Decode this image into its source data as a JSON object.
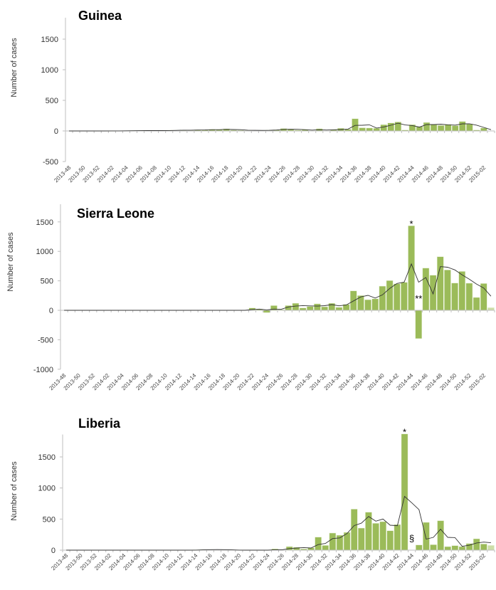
{
  "chart_data": [
    {
      "type": "bar",
      "title": "Guinea",
      "ylabel": "Number of cases",
      "xlabel": "",
      "ylim": [
        -500,
        1850
      ],
      "yticks": [
        "1500",
        "1000",
        "500",
        "0",
        "-500"
      ],
      "ytick_values": [
        1500,
        1000,
        500,
        0,
        -500
      ],
      "tick_labels": [
        "2013-48",
        "2013-50",
        "2013-52",
        "2014-02",
        "2014-04",
        "2014-06",
        "2014-08",
        "2014-10",
        "2014-12",
        "2014-14",
        "2014-16",
        "2014-18",
        "2014-20",
        "2014-22",
        "2014-24",
        "2014-26",
        "2014-28",
        "2014-30",
        "2014-32",
        "2014-34",
        "2014-36",
        "2014-38",
        "2014-40",
        "2014-42",
        "2014-44",
        "2014-46",
        "2014-48",
        "2014-50",
        "2014-52",
        "2015-02"
      ],
      "weeks_per_tick": 2,
      "values": [
        0,
        0,
        0,
        0,
        0,
        0,
        2,
        3,
        3,
        5,
        5,
        8,
        5,
        5,
        12,
        10,
        15,
        12,
        20,
        18,
        25,
        20,
        35,
        15,
        12,
        10,
        8,
        10,
        15,
        20,
        40,
        25,
        15,
        22,
        5,
        36,
        5,
        20,
        44,
        28,
        200,
        52,
        48,
        44,
        103,
        131,
        147,
        16,
        103,
        71,
        139,
        103,
        91,
        107,
        87,
        155,
        111,
        16,
        48,
        0
      ],
      "trend": "moving average (3 weeks)",
      "annotations": []
    },
    {
      "type": "bar",
      "title": "Sierra Leone",
      "ylabel": "Number of cases",
      "xlabel": "",
      "ylim": [
        -1000,
        1800
      ],
      "yticks": [
        "1500",
        "1000",
        "500",
        "0",
        "-500",
        "-1000"
      ],
      "ytick_values": [
        1500,
        1000,
        500,
        0,
        -500,
        -1000
      ],
      "tick_labels": [
        "2013-48",
        "2013-50",
        "2013-52",
        "2014-02",
        "2014-04",
        "2014-06",
        "2014-08",
        "2014-10",
        "2014-12",
        "2014-14",
        "2014-16",
        "2014-18",
        "2014-20",
        "2014-22",
        "2014-24",
        "2014-26",
        "2014-28",
        "2014-30",
        "2014-32",
        "2014-34",
        "2014-36",
        "2014-38",
        "2014-40",
        "2014-42",
        "2014-44",
        "2014-46",
        "2014-48",
        "2014-50",
        "2014-52",
        "2015-02"
      ],
      "weeks_per_tick": 2,
      "values": [
        0,
        0,
        0,
        0,
        0,
        0,
        0,
        0,
        0,
        0,
        0,
        0,
        0,
        0,
        0,
        0,
        0,
        0,
        0,
        0,
        0,
        0,
        0,
        0,
        0,
        0,
        40,
        20,
        -40,
        80,
        12,
        80,
        120,
        40,
        65,
        110,
        60,
        120,
        50,
        100,
        330,
        250,
        180,
        195,
        410,
        505,
        450,
        475,
        1435,
        -480,
        717,
        596,
        910,
        685,
        463,
        660,
        460,
        218,
        455,
        45
      ],
      "trend": "moving average (3 weeks)",
      "annotations": [
        {
          "text": "*",
          "week_index": 48,
          "position": "above"
        },
        {
          "text": "**",
          "week_index": 49,
          "position": "above-zero"
        }
      ]
    },
    {
      "type": "bar",
      "title": "Liberia",
      "ylabel": "Number of cases",
      "xlabel": "",
      "ylim": [
        0,
        1860
      ],
      "yticks": [
        "1500",
        "1000",
        "500",
        "0"
      ],
      "ytick_values": [
        1500,
        1000,
        500,
        0
      ],
      "tick_labels": [
        "2013-48",
        "2013-50",
        "2013-52",
        "2014-02",
        "2014-04",
        "2014-06",
        "2014-08",
        "2014-10",
        "2014-12",
        "2014-14",
        "2014-16",
        "2014-18",
        "2014-20",
        "2014-22",
        "2014-24",
        "2014-26",
        "2014-28",
        "2014-30",
        "2014-32",
        "2014-34",
        "2014-36",
        "2014-38",
        "2014-40",
        "2014-42",
        "2014-44",
        "2014-46",
        "2014-48",
        "2014-50",
        "2014-52",
        "2015-02"
      ],
      "weeks_per_tick": 2,
      "values": [
        0,
        0,
        0,
        0,
        0,
        0,
        0,
        0,
        0,
        0,
        0,
        0,
        0,
        0,
        0,
        0,
        0,
        0,
        5,
        8,
        10,
        8,
        5,
        0,
        0,
        0,
        0,
        0,
        0,
        20,
        0,
        57,
        46,
        20,
        38,
        210,
        76,
        275,
        240,
        286,
        660,
        355,
        611,
        432,
        458,
        313,
        412,
        1870,
        0,
        84,
        447,
        88,
        474,
        57,
        73,
        57,
        107,
        183,
        99,
        76
      ],
      "trend": "moving average (3 weeks)",
      "annotations": [
        {
          "text": "*",
          "week_index": 47,
          "position": "above"
        },
        {
          "text": "§",
          "week_index": 48,
          "position": "above-zero"
        }
      ]
    }
  ],
  "colors": {
    "bar": "#9bbb59",
    "bar_last": "#cddea8",
    "trend": "#333333",
    "axis": "#bfbfbf"
  }
}
